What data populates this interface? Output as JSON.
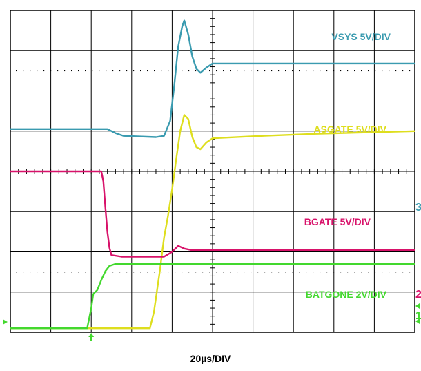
{
  "chart_data": {
    "type": "line",
    "title": "",
    "xlabel": "20µs/DIV",
    "ylabel": "",
    "x_unit": "µs",
    "x_range_us": [
      0,
      200
    ],
    "grid": true,
    "grid_divisions": {
      "horizontal": 10,
      "vertical": 8
    },
    "series": [
      {
        "name": "VSYS 5V/DIV",
        "channel": "3",
        "color": "#3a9bb0",
        "y_unit": "div",
        "points": [
          [
            0,
            5.05
          ],
          [
            48,
            5.05
          ],
          [
            52,
            4.95
          ],
          [
            56,
            4.88
          ],
          [
            72,
            4.85
          ],
          [
            76,
            4.88
          ],
          [
            79,
            5.25
          ],
          [
            81,
            6.1
          ],
          [
            83,
            7.1
          ],
          [
            85,
            7.6
          ],
          [
            86,
            7.75
          ],
          [
            88,
            7.4
          ],
          [
            90,
            6.85
          ],
          [
            92,
            6.55
          ],
          [
            94,
            6.45
          ],
          [
            97,
            6.58
          ],
          [
            100,
            6.68
          ],
          [
            104,
            6.68
          ],
          [
            200,
            6.68
          ]
        ]
      },
      {
        "name": "ASGATE 5V/DIV",
        "channel": "",
        "color": "#dede1e",
        "y_unit": "div",
        "points": [
          [
            0,
            0.1
          ],
          [
            69,
            0.1
          ],
          [
            71,
            0.5
          ],
          [
            74,
            1.55
          ],
          [
            76,
            2.35
          ],
          [
            78,
            2.9
          ],
          [
            80,
            3.55
          ],
          [
            82,
            4.3
          ],
          [
            84,
            5.0
          ],
          [
            86,
            5.4
          ],
          [
            88,
            5.3
          ],
          [
            90,
            4.85
          ],
          [
            92,
            4.6
          ],
          [
            94,
            4.55
          ],
          [
            97,
            4.72
          ],
          [
            100,
            4.82
          ],
          [
            120,
            4.87
          ],
          [
            150,
            4.93
          ],
          [
            200,
            5.0
          ]
        ]
      },
      {
        "name": "BGATE 5V/DIV",
        "channel": "2",
        "color": "#d8126a",
        "y_unit": "div",
        "points": [
          [
            0,
            4.0
          ],
          [
            45,
            4.0
          ],
          [
            46,
            3.75
          ],
          [
            47,
            3.1
          ],
          [
            48,
            2.5
          ],
          [
            49,
            2.1
          ],
          [
            50,
            1.92
          ],
          [
            55,
            1.88
          ],
          [
            76,
            1.88
          ],
          [
            80,
            2.0
          ],
          [
            83,
            2.15
          ],
          [
            86,
            2.08
          ],
          [
            90,
            2.04
          ],
          [
            200,
            2.04
          ]
        ]
      },
      {
        "name": "BATGONE 2V/DIV",
        "channel": "1",
        "color": "#43d82e",
        "y_unit": "div",
        "points": [
          [
            0,
            0.1
          ],
          [
            38,
            0.1
          ],
          [
            40,
            0.6
          ],
          [
            41,
            0.95
          ],
          [
            43,
            1.05
          ],
          [
            45,
            1.3
          ],
          [
            47,
            1.52
          ],
          [
            49,
            1.65
          ],
          [
            52,
            1.7
          ],
          [
            200,
            1.7
          ]
        ]
      }
    ],
    "markers": {
      "trigger_arrow_color": "#43d82e",
      "level_arrow_color": "#43d82e"
    }
  }
}
